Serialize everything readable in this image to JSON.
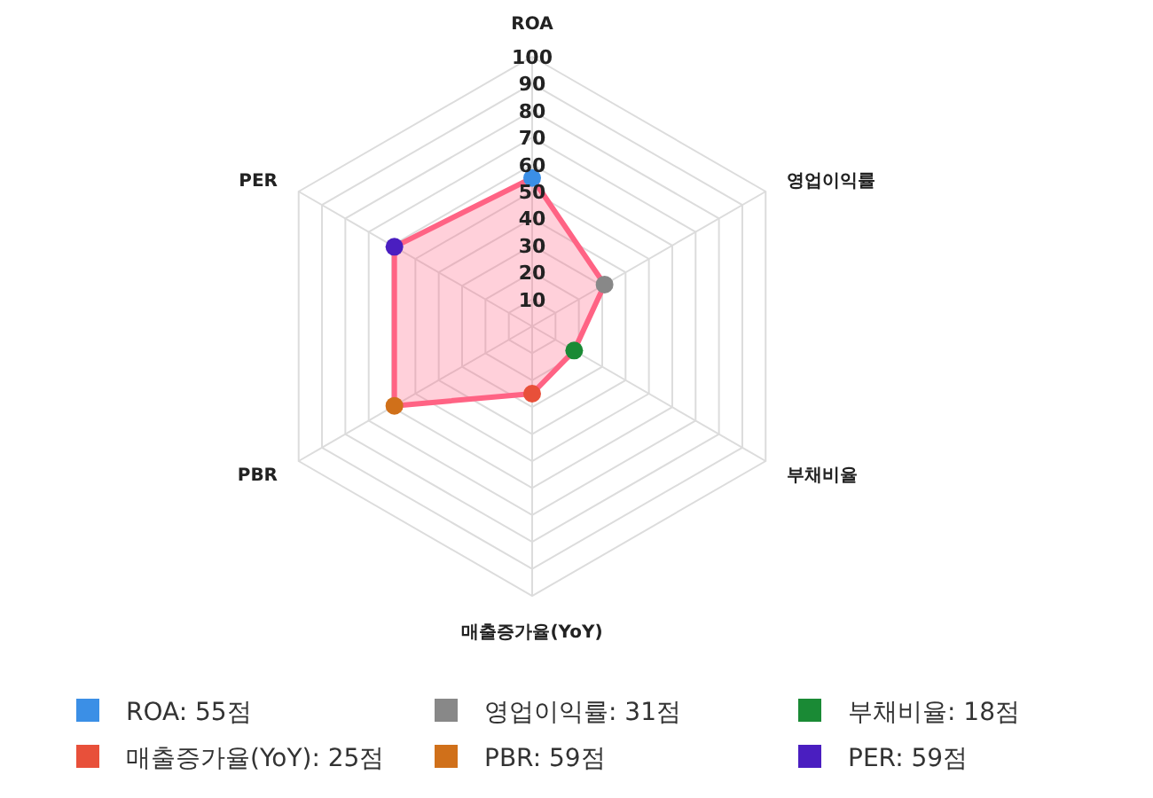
{
  "chart_data": {
    "type": "radar",
    "categories": [
      "ROA",
      "영업이익률",
      "부채비율",
      "매출증가율(YoY)",
      "PBR",
      "PER"
    ],
    "series": [
      {
        "color": "#ff6384",
        "values": [
          55,
          31,
          18,
          25,
          59,
          59
        ],
        "colors": [
          "#3b8fe6",
          "#888888",
          "#1a8a35",
          "#e8503a",
          "#d0701a",
          "#4a1ec0"
        ]
      }
    ],
    "annotations": [
      "ROA: 55점",
      "영업이익률: 31점",
      "부채비율: 18점",
      "매출증가율(YoY): 25점",
      "PBR: 59점",
      "PER: 59점"
    ],
    "ylim": [
      0,
      100
    ],
    "yticks": [
      10,
      20,
      30,
      40,
      50,
      60,
      70,
      80,
      90,
      100
    ],
    "grid": true,
    "marker": "circle"
  }
}
